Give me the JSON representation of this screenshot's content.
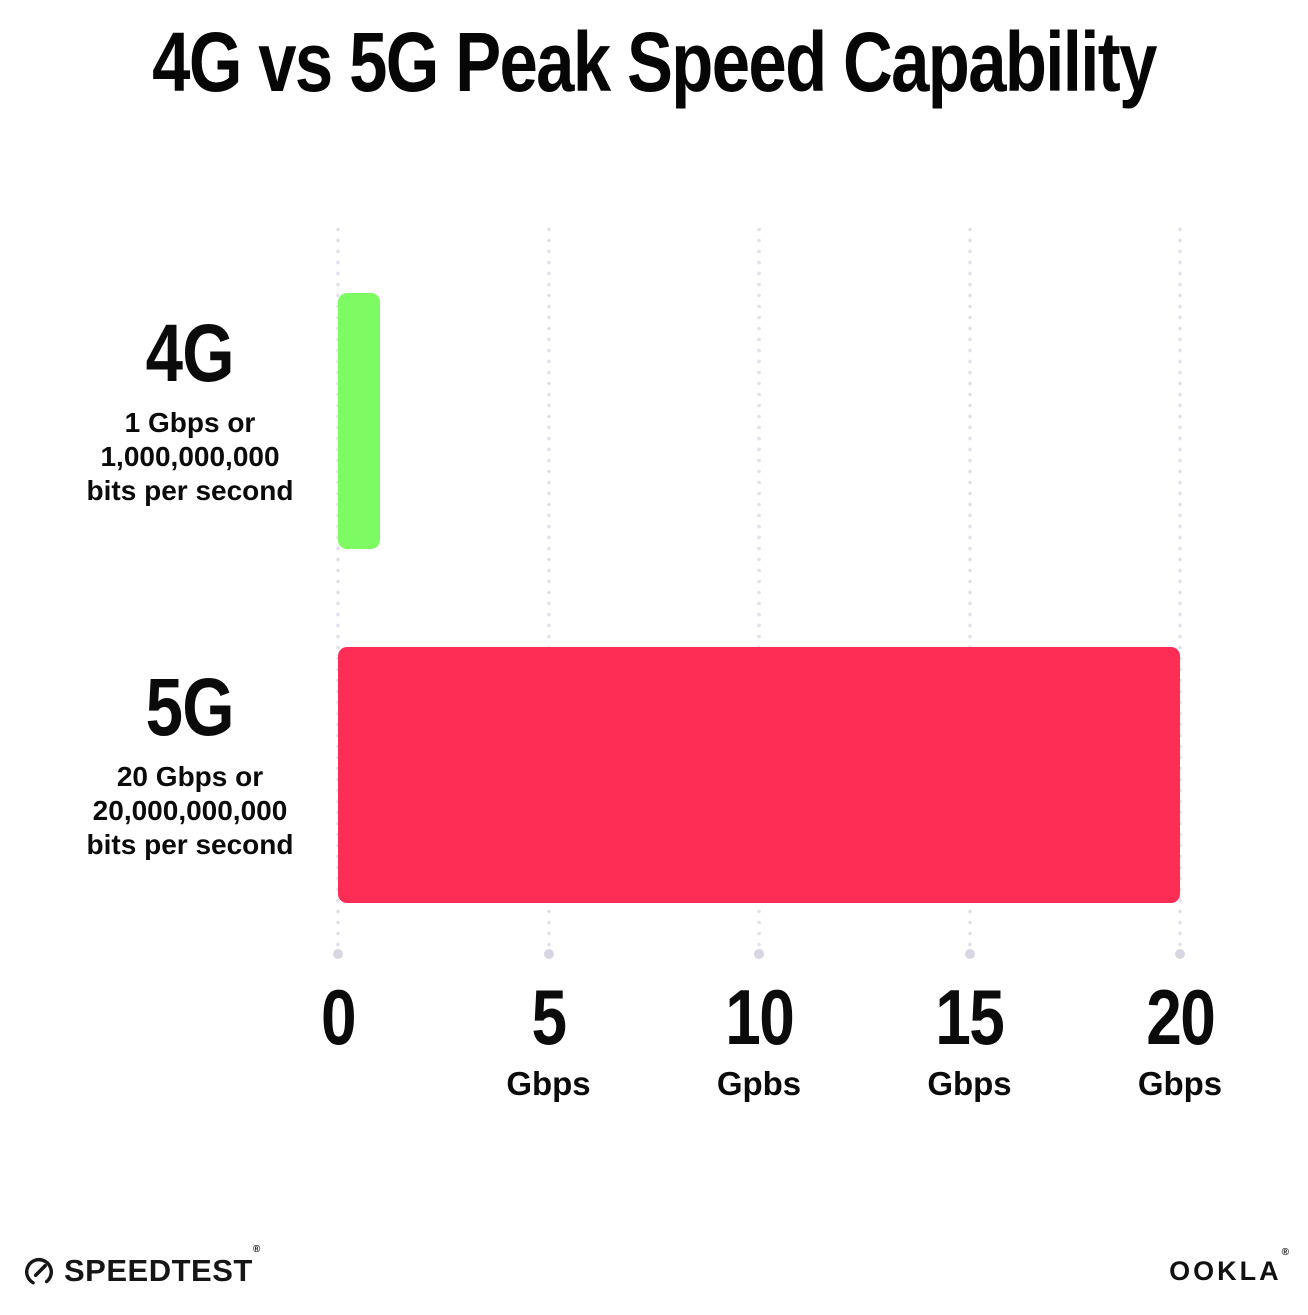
{
  "title": "4G vs 5G Peak Speed Capability",
  "colors": {
    "bar_4g_green": "#7efb63",
    "bar_5g_red": "#fe2d55",
    "grid": "#e2e2ee",
    "grid_end_dot": "#d7d7e4",
    "ink": "#0b0b0b"
  },
  "chart_data": {
    "type": "bar",
    "orientation": "horizontal",
    "title": "4G vs 5G Peak Speed Capability",
    "categories": [
      "4G",
      "5G"
    ],
    "values": [
      1,
      20
    ],
    "value_unit": "Gbps",
    "xlim": [
      0,
      20
    ],
    "grid": "dotted vertical gridlines every 5 Gbps",
    "legend": "none",
    "rows": [
      {
        "label": "4G",
        "value": 1,
        "color": "#7efb63",
        "sublines": [
          "1 Gbps or",
          "1,000,000,000",
          "bits per second"
        ]
      },
      {
        "label": "5G",
        "value": 20,
        "color": "#fe2d55",
        "sublines": [
          "20 Gbps or",
          "20,000,000,000",
          "bits per second"
        ]
      }
    ],
    "x_ticks": [
      {
        "value": 0,
        "label": "0",
        "unit": ""
      },
      {
        "value": 5,
        "label": "5",
        "unit": "Gbps"
      },
      {
        "value": 10,
        "label": "10",
        "unit": "Gpbs"
      },
      {
        "value": 15,
        "label": "15",
        "unit": "Gbps"
      },
      {
        "value": 20,
        "label": "20",
        "unit": "Gbps"
      }
    ]
  },
  "footer": {
    "speedtest_label": "SPEEDTEST",
    "speedtest_trademark": "®",
    "ookla_label": "OOKLA",
    "ookla_trademark": "®"
  }
}
